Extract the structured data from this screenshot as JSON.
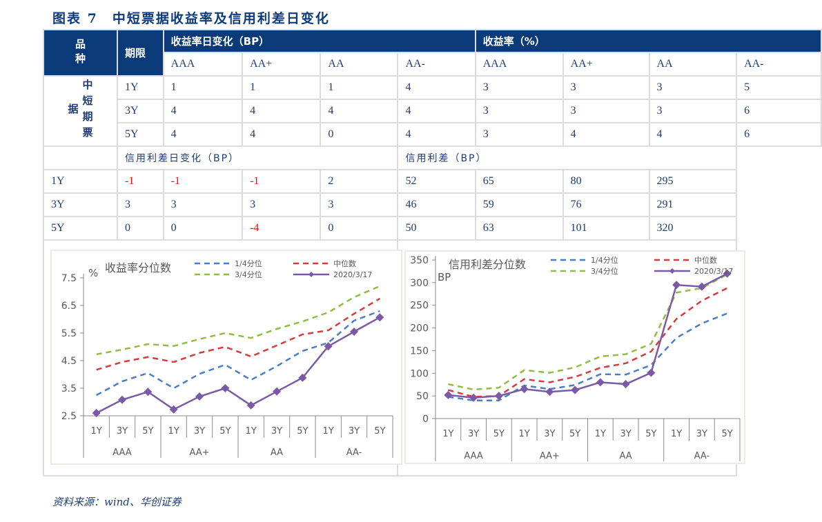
{
  "title": "图表 7　中短票据收益率及信用利差日变化",
  "source": "资料来源：wind、华创证券",
  "table": {
    "product_header": "品种",
    "term_header": "期限",
    "product_name": "中短期票据",
    "group1_header": "收益率日变化（BP）",
    "group2_header": "收益率（%）",
    "ratings": [
      "AAA",
      "AA+",
      "AA",
      "AA-"
    ],
    "yield_rows": [
      {
        "term": "1Y",
        "change": [
          "1",
          "1",
          "1",
          "4"
        ],
        "level": [
          "3",
          "3",
          "3",
          "5"
        ]
      },
      {
        "term": "3Y",
        "change": [
          "4",
          "4",
          "4",
          "4"
        ],
        "level": [
          "3",
          "3",
          "3",
          "6"
        ]
      },
      {
        "term": "5Y",
        "change": [
          "4",
          "4",
          "0",
          "4"
        ],
        "level": [
          "3",
          "4",
          "4",
          "6"
        ]
      }
    ],
    "spread_change_header": "信用利差日变化（BP）",
    "spread_header": "信用利差（BP）",
    "spread_rows": [
      {
        "term": "1Y",
        "change": [
          "-1",
          "-1",
          "-1",
          "2"
        ],
        "level": [
          "52",
          "65",
          "80",
          "295"
        ]
      },
      {
        "term": "3Y",
        "change": [
          "3",
          "3",
          "3",
          "3"
        ],
        "level": [
          "46",
          "59",
          "76",
          "291"
        ]
      },
      {
        "term": "5Y",
        "change": [
          "0",
          "0",
          "-4",
          "0"
        ],
        "level": [
          "50",
          "63",
          "101",
          "320"
        ]
      }
    ]
  },
  "colors": {
    "header_bg": "#0b3a78",
    "negative": "#ff0000",
    "q1": "#4a7ec4",
    "median": "#d23c3c",
    "q3": "#8fbc45",
    "current": "#7a5aa6"
  },
  "chart_data": [
    {
      "type": "line",
      "title": "收益率分位数",
      "ylabel": "%",
      "ylim": [
        2.5,
        7.5
      ],
      "yticks": [
        "2.5",
        "3.5",
        "4.5",
        "5.5",
        "6.5",
        "7.5"
      ],
      "categories": [
        "1Y",
        "3Y",
        "5Y",
        "1Y",
        "3Y",
        "5Y",
        "1Y",
        "3Y",
        "5Y",
        "1Y",
        "3Y",
        "5Y"
      ],
      "groups": [
        "AAA",
        "AA+",
        "AA",
        "AA-"
      ],
      "legend": "top",
      "series": [
        {
          "name": "1/4分位",
          "style": "dashed",
          "color": "#4a7ec4",
          "values": [
            3.25,
            3.75,
            4.05,
            3.5,
            4.02,
            4.35,
            3.8,
            4.3,
            4.85,
            5.15,
            5.95,
            6.3
          ]
        },
        {
          "name": "中位数",
          "style": "dashed",
          "color": "#d23c3c",
          "values": [
            4.17,
            4.45,
            4.63,
            4.45,
            4.78,
            5.0,
            4.65,
            5.05,
            5.45,
            5.6,
            6.2,
            6.75
          ]
        },
        {
          "name": "3/4分位",
          "style": "dashed",
          "color": "#8fbc45",
          "values": [
            4.73,
            4.9,
            5.1,
            5.03,
            5.28,
            5.5,
            5.32,
            5.65,
            5.92,
            6.25,
            6.8,
            7.2
          ]
        },
        {
          "name": "2020/3/17",
          "style": "solid-diamond",
          "color": "#7a5aa6",
          "values": [
            2.6,
            3.08,
            3.37,
            2.73,
            3.2,
            3.5,
            2.88,
            3.38,
            3.88,
            5.02,
            5.55,
            6.07
          ]
        }
      ]
    },
    {
      "type": "line",
      "title": "信用利差分位数",
      "ylabel": "BP",
      "ylim": [
        0,
        350
      ],
      "yticks": [
        "0",
        "50",
        "100",
        "150",
        "200",
        "250",
        "300",
        "350"
      ],
      "categories": [
        "1Y",
        "3Y",
        "5Y",
        "1Y",
        "3Y",
        "5Y",
        "1Y",
        "3Y",
        "5Y",
        "1Y",
        "3Y",
        "5Y"
      ],
      "groups": [
        "AAA",
        "AA+",
        "AA",
        "AA-"
      ],
      "legend": "top",
      "series": [
        {
          "name": "1/4分位",
          "style": "dashed",
          "color": "#4a7ec4",
          "values": [
            48,
            40,
            40,
            73,
            65,
            74,
            98,
            97,
            118,
            178,
            210,
            232
          ]
        },
        {
          "name": "中位数",
          "style": "dashed",
          "color": "#d23c3c",
          "values": [
            63,
            48,
            50,
            87,
            80,
            92,
            112,
            122,
            148,
            220,
            260,
            288
          ]
        },
        {
          "name": "3/4分位",
          "style": "dashed",
          "color": "#8fbc45",
          "values": [
            76,
            64,
            68,
            107,
            101,
            113,
            137,
            142,
            165,
            278,
            288,
            318
          ]
        },
        {
          "name": "2020/3/17",
          "style": "solid-diamond",
          "color": "#7a5aa6",
          "values": [
            52,
            46,
            50,
            65,
            59,
            63,
            80,
            76,
            101,
            295,
            291,
            320
          ]
        }
      ]
    }
  ]
}
